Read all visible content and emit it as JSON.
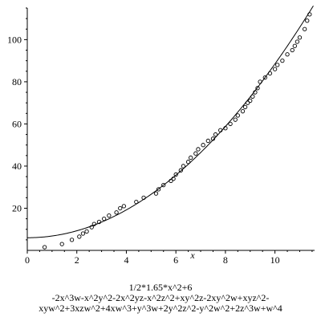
{
  "chart_data": {
    "type": "scatter",
    "xlabel": "x",
    "ylabel": "",
    "xlim": [
      0,
      11.6
    ],
    "ylim": [
      0,
      115
    ],
    "x_ticks": [
      0,
      2,
      4,
      6,
      8,
      10
    ],
    "y_ticks": [
      20,
      40,
      60,
      80,
      100
    ],
    "grid": false,
    "legend": "none",
    "series": [
      {
        "kind": "points",
        "marker": "circle",
        "color": "#000000",
        "x": [
          0.7,
          1.4,
          1.8,
          2.1,
          2.25,
          2.4,
          2.6,
          2.7,
          2.9,
          3.1,
          3.3,
          3.6,
          3.75,
          3.9,
          4.4,
          4.7,
          5.2,
          5.3,
          5.5,
          5.8,
          5.9,
          6.0,
          6.2,
          6.3,
          6.5,
          6.6,
          6.8,
          6.9,
          7.1,
          7.3,
          7.5,
          7.6,
          7.8,
          8.0,
          8.2,
          8.4,
          8.5,
          8.7,
          8.8,
          8.9,
          9.0,
          9.1,
          9.2,
          9.3,
          9.4,
          9.6,
          9.8,
          10.0,
          10.1,
          10.3,
          10.5,
          10.7,
          10.8,
          10.9,
          11.0,
          11.2,
          11.3,
          11.4
        ],
        "y": [
          1.5,
          3,
          5,
          6.5,
          8,
          9,
          11,
          12.5,
          13.5,
          15,
          16.5,
          18,
          20,
          21,
          23,
          25,
          27,
          29,
          31,
          33,
          34,
          36,
          38,
          40,
          42,
          44,
          46,
          48,
          50,
          52,
          53,
          55,
          57,
          58,
          60,
          62,
          64,
          66,
          68,
          70,
          71,
          73,
          75,
          77,
          80,
          82,
          84,
          86,
          88,
          90,
          93,
          95,
          97,
          99,
          101,
          105,
          109,
          112
        ]
      },
      {
        "kind": "curve",
        "color": "#000000",
        "formula": "1/2*1.65*x^2+6"
      }
    ]
  },
  "caption": {
    "line1": "1/2*1.65*x^2+6",
    "line2": "-2x^3w-x^2y^2-2x^2yz-x^2z^2+xy^2z-2xy^2w+xyz^2-",
    "line3": "xyw^2+3xzw^2+4xw^3+y^3w+2y^2z^2-y^2w^2+2z^3w+w^4"
  }
}
